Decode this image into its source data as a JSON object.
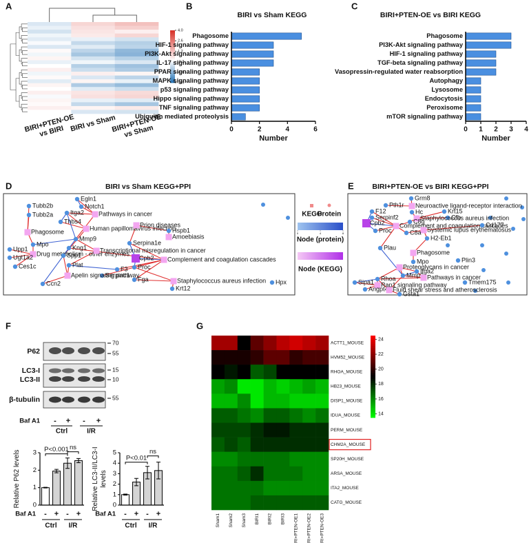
{
  "panel_labels": [
    "A",
    "B",
    "C",
    "D",
    "E",
    "F",
    "G"
  ],
  "chart_data": [
    {
      "type": "heatmap",
      "colormap": "blue-white-red",
      "clim": [
        -3,
        4
      ],
      "colorbar_ticks": [
        {
          "value": 4,
          "label": "4.0"
        },
        2.6,
        1.2,
        -0.2,
        -1.6,
        {
          "value": -3,
          "label": "-3.0"
        }
      ],
      "columns": [
        [
          "BIRI+PTEN-OE",
          "vs BIRI"
        ],
        [
          "BIRI vs Sham"
        ],
        [
          "BIRI+PTEN-OE",
          "vs Sham"
        ]
      ],
      "values": [
        [
          -0.5,
          0.8,
          1.2
        ],
        [
          -0.3,
          0.6,
          0.9
        ],
        [
          -0.6,
          0.5,
          0.3
        ],
        [
          -0.2,
          0.4,
          0.8
        ],
        [
          -0.4,
          -0.3,
          -0.6
        ],
        [
          -0.1,
          -0.8,
          -1.0
        ],
        [
          -0.5,
          -0.4,
          -0.9
        ],
        [
          0.1,
          -0.9,
          -1.5
        ],
        [
          -0.2,
          -1.2,
          -1.6
        ],
        [
          0.2,
          -0.6,
          -1.0
        ],
        [
          -0.3,
          -0.2,
          -0.5
        ],
        [
          0.0,
          -1.0,
          -1.3
        ],
        [
          0.3,
          -0.7,
          -1.1
        ],
        [
          -0.2,
          0.3,
          0.2
        ],
        [
          0.1,
          -0.5,
          -0.9
        ],
        [
          -0.4,
          0.2,
          -0.3
        ],
        [
          0.2,
          -1.1,
          -1.4
        ],
        [
          0.0,
          -0.4,
          -0.7
        ],
        [
          0.3,
          0.5,
          0.7
        ],
        [
          -0.1,
          0.6,
          0.8
        ],
        [
          0.2,
          -0.3,
          -0.4
        ],
        [
          0.1,
          -0.8,
          -1.2
        ],
        [
          0.3,
          0.2,
          0.4
        ],
        [
          0.0,
          -0.5,
          -0.6
        ]
      ]
    },
    {
      "type": "barh",
      "title": "BIRI vs Sham KEGG",
      "color": "#4a8fe0",
      "categories": [
        "Phagosome",
        "HIF-1 signaling pathway",
        "PI3K-Akt signaling pathway",
        "IL-17 signaling pathway",
        "PPAR signaling pathway",
        "MAPK signaling pathway",
        "p53 signaling pathway",
        "Hippo signaling pathway",
        "TNF signaling pathway",
        "Ubiquitin mediated proteolysis"
      ],
      "values": [
        5,
        3,
        3,
        3,
        2,
        2,
        2,
        2,
        2,
        1
      ],
      "xlim": [
        0,
        6
      ],
      "xticks": [
        0,
        2,
        4,
        6
      ],
      "xlabel": "Number"
    },
    {
      "type": "barh",
      "title": "BIRI+PTEN-OE vs BIRI KEGG",
      "color": "#4a8fe0",
      "categories": [
        "Phagosome",
        "PI3K-Akt signaling pathway",
        "HIF-1 signaling pathway",
        "TGF-beta signaling pathway",
        "Vasopressin-regulated water reabsorption",
        "Autophagy",
        "Lysosome",
        "Endocytosis",
        "Peroxisome",
        "mTOR signaling pathway"
      ],
      "values": [
        3,
        3,
        2,
        2,
        2,
        1,
        1,
        1,
        1,
        1
      ],
      "xlim": [
        0,
        4
      ],
      "xticks": [
        0,
        1,
        2,
        3,
        4
      ],
      "xlabel": "Number"
    },
    {
      "type": "network",
      "title": "BIRI vs Sham KEGG+PPI",
      "nodes": [
        {
          "name": "Egln1",
          "kind": "protein"
        },
        {
          "name": "Notch1",
          "kind": "protein"
        },
        {
          "name": "Tubb2b",
          "kind": "protein"
        },
        {
          "name": "Tubb2a",
          "kind": "protein"
        },
        {
          "name": "Itga2",
          "kind": "protein"
        },
        {
          "name": "Thbs4",
          "kind": "protein"
        },
        {
          "name": "Pathways in cancer",
          "kind": "kegg"
        },
        {
          "name": "Phagosome",
          "kind": "kegg"
        },
        {
          "name": "Human papillomavirus infection",
          "kind": "kegg"
        },
        {
          "name": "Mmp9",
          "kind": "protein"
        },
        {
          "name": "Prion diseases",
          "kind": "kegg"
        },
        {
          "name": "Hspb1",
          "kind": "protein"
        },
        {
          "name": "Amoebiasis",
          "kind": "kegg"
        },
        {
          "name": "Kng1",
          "kind": "protein"
        },
        {
          "name": "Mpo",
          "kind": "protein"
        },
        {
          "name": "Upp1",
          "kind": "protein"
        },
        {
          "name": "Drug metabolism - other enzymes",
          "kind": "kegg"
        },
        {
          "name": "Ugt1a2",
          "kind": "protein"
        },
        {
          "name": "Ces1c",
          "kind": "protein"
        },
        {
          "name": "Spp1",
          "kind": "protein"
        },
        {
          "name": "Serpina1e",
          "kind": "protein"
        },
        {
          "name": "Transcriptional misregulation in cancer",
          "kind": "kegg"
        },
        {
          "name": "Cpb2",
          "kind": "hub"
        },
        {
          "name": "Complement and coagulation cascades",
          "kind": "kegg"
        },
        {
          "name": "Proc",
          "kind": "protein"
        },
        {
          "name": "Plat",
          "kind": "protein"
        },
        {
          "name": "F3",
          "kind": "protein"
        },
        {
          "name": "Serpinc1",
          "kind": "protein"
        },
        {
          "name": "Fga",
          "kind": "protein"
        },
        {
          "name": "Apelin signaling pathway",
          "kind": "kegg"
        },
        {
          "name": "Staphylococcus aureus infection",
          "kind": "kegg"
        },
        {
          "name": "Hpx",
          "kind": "protein"
        },
        {
          "name": "Ccn2",
          "kind": "protein"
        },
        {
          "name": "Krt12",
          "kind": "protein"
        }
      ]
    },
    {
      "type": "network",
      "title": "BIRI+PTEN-OE vs BIRI KEGG+PPI",
      "nodes": [
        {
          "name": "Grm8",
          "kind": "protein"
        },
        {
          "name": "Pth1r",
          "kind": "protein"
        },
        {
          "name": "Neuroactive ligand-receptor interaction",
          "kind": "kegg"
        },
        {
          "name": "F12",
          "kind": "protein"
        },
        {
          "name": "Krt15",
          "kind": "protein"
        },
        {
          "name": "Hc",
          "kind": "protein"
        },
        {
          "name": "Serpinf2",
          "kind": "protein"
        },
        {
          "name": "Cfb",
          "kind": "protein"
        },
        {
          "name": "Staphylococcus aureus infection",
          "kind": "kegg"
        },
        {
          "name": "Cpb2",
          "kind": "hub"
        },
        {
          "name": "C8g",
          "kind": "protein"
        },
        {
          "name": "Complement and coagulation cascades",
          "kind": "kegg"
        },
        {
          "name": "Systemic lupus erythematosus",
          "kind": "kegg"
        },
        {
          "name": "Cd177",
          "kind": "protein"
        },
        {
          "name": "C8a",
          "kind": "protein"
        },
        {
          "name": "Proc",
          "kind": "protein"
        },
        {
          "name": "H2-Eb1",
          "kind": "protein"
        },
        {
          "name": "Plau",
          "kind": "protein"
        },
        {
          "name": "Phagosome",
          "kind": "kegg"
        },
        {
          "name": "Mpo",
          "kind": "protein"
        },
        {
          "name": "Plin3",
          "kind": "protein"
        },
        {
          "name": "Proteoglycans in cancer",
          "kind": "kegg"
        },
        {
          "name": "Itga2",
          "kind": "protein"
        },
        {
          "name": "Mmp9",
          "kind": "protein"
        },
        {
          "name": "Pathways in cancer",
          "kind": "kegg"
        },
        {
          "name": "Rhoa",
          "kind": "protein"
        },
        {
          "name": "Sipa1",
          "kind": "protein"
        },
        {
          "name": "Tmem175",
          "kind": "protein"
        },
        {
          "name": "Rap1 signaling pathway",
          "kind": "kegg"
        },
        {
          "name": "Angpt4",
          "kind": "protein"
        },
        {
          "name": "Fluid shear stress and atherosclerosis",
          "kind": "kegg"
        },
        {
          "name": "Gsta1",
          "kind": "protein"
        }
      ]
    },
    {
      "type": "bar",
      "ylabel": [
        "Relative P62 levels"
      ],
      "categories": [
        "-",
        "+",
        "-",
        "+"
      ],
      "treatment_label": "Baf A1",
      "groups": [
        "Ctrl",
        "I/R"
      ],
      "values": [
        1,
        1.95,
        2.4,
        2.55
      ],
      "errors": [
        0.02,
        0.1,
        0.3,
        0.12
      ],
      "colors": [
        "#ffffff",
        "#d4d4d4",
        "#d4d4d4",
        "#d4d4d4"
      ],
      "ylim": [
        0,
        3
      ],
      "yticks": [
        0,
        1,
        2,
        3
      ],
      "annotations": [
        {
          "text": "P<0.001",
          "from": 0,
          "to": 2
        },
        {
          "text": "ns",
          "from": 2,
          "to": 3
        }
      ]
    },
    {
      "type": "bar",
      "ylabel": [
        "Relative LC3-II/LC3-I",
        "levels"
      ],
      "categories": [
        "-",
        "+",
        "-",
        "+"
      ],
      "treatment_label": "Baf A1",
      "groups": [
        "Ctrl",
        "I/R"
      ],
      "values": [
        1,
        2.2,
        3.1,
        3.3
      ],
      "errors": [
        0.05,
        0.35,
        0.6,
        0.8
      ],
      "colors": [
        "#ffffff",
        "#d4d4d4",
        "#d4d4d4",
        "#d4d4d4"
      ],
      "ylim": [
        0,
        5
      ],
      "yticks": [
        0,
        1,
        2,
        3,
        4,
        5
      ],
      "annotations": [
        {
          "text": "P<0.01",
          "from": 0,
          "to": 2
        },
        {
          "text": "ns",
          "from": 2,
          "to": 3
        }
      ]
    },
    {
      "type": "heatmap",
      "colormap": "green-black-red",
      "clim": [
        13.5,
        24.5
      ],
      "colorbar_ticks": [
        14,
        16,
        18,
        20,
        22,
        24
      ],
      "highlight_row": 7,
      "rows": [
        "ACTT1_MOUSE",
        "HVM52_MOUSE",
        "RHOA_MOUSE",
        "HB23_MOUSE",
        "DISP1_MOUSE",
        "IDUA_MOUSE",
        "PERM_MOUSE",
        "CHM2A_MOUSE",
        "SP20H_MOUSE",
        "ARSA_MOUSE",
        "ITA2_MOUSE",
        "CATG_MOUSE"
      ],
      "columns": [
        "Sham1",
        "Sham2",
        "Sham3",
        "BIRI1",
        "BIRI2",
        "BIRI3",
        "BIRI+PTEN-OE1",
        "BIRI+PTEN-OE2",
        "BIRI+PTEN-OE3"
      ],
      "values": [
        [
          22.5,
          22.5,
          19,
          21,
          22,
          23,
          23.5,
          23,
          22.5
        ],
        [
          19.5,
          19.5,
          19.5,
          20,
          21,
          21,
          20,
          20.5,
          20.5
        ],
        [
          19,
          18.5,
          19,
          17,
          17.5,
          19,
          19,
          19,
          19
        ],
        [
          15.5,
          16,
          14,
          14,
          15,
          14.5,
          15,
          15.5,
          15
        ],
        [
          15,
          15,
          16,
          14,
          15,
          15,
          14.5,
          14.5,
          14.5
        ],
        [
          17,
          17,
          16.5,
          16,
          17,
          17,
          16.5,
          16,
          16.5
        ],
        [
          17.5,
          17.5,
          17.5,
          18,
          18.5,
          18.5,
          18,
          18,
          18
        ],
        [
          17,
          17.5,
          17,
          18,
          18,
          18,
          18,
          18,
          18
        ],
        [
          16,
          16,
          16.5,
          16.5,
          16.5,
          16.5,
          16,
          16,
          16
        ],
        [
          16.5,
          16.5,
          17,
          18,
          16.5,
          16.5,
          16.5,
          16,
          16
        ],
        [
          16.5,
          16.5,
          16.5,
          16.5,
          16,
          16,
          16,
          16,
          16
        ],
        [
          16.5,
          16.5,
          16.5,
          17,
          17,
          17,
          17,
          17,
          17
        ]
      ]
    }
  ],
  "network_legend": {
    "kegg": "KEGG",
    "protein": "Protein",
    "node_protein": "Node (protein)",
    "node_kegg": "Node (KEGG)",
    "ticks": [
      0,
      4,
      8
    ]
  },
  "blot": {
    "rows": [
      "P62",
      "LC3-I",
      "LC3-II",
      "β-tubulin"
    ],
    "markers": [
      70,
      55,
      15,
      10,
      55
    ],
    "treatment_label": "Baf A1",
    "treatments": [
      "-",
      "+",
      "-",
      "+"
    ],
    "groups": [
      "Ctrl",
      "I/R"
    ]
  }
}
